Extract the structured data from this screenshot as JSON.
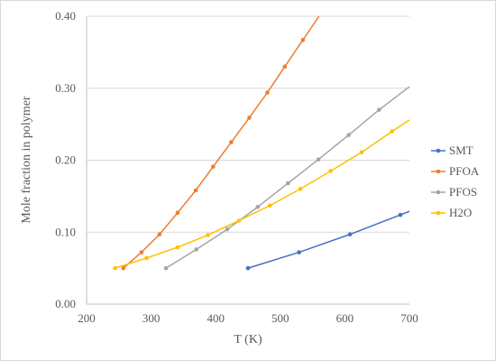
{
  "chart_data": {
    "type": "line",
    "title": "",
    "xlabel": "T (K)",
    "ylabel": "Mole fraction in polymer",
    "xlim": [
      200,
      700
    ],
    "ylim": [
      0.0,
      0.4
    ],
    "xticks": [
      "200",
      "300",
      "400",
      "500",
      "600",
      "700"
    ],
    "xtick_values": [
      200,
      300,
      400,
      500,
      600,
      700
    ],
    "yticks": [
      "0.00",
      "0.10",
      "0.20",
      "0.30",
      "0.40"
    ],
    "ytick_values": [
      0.0,
      0.1,
      0.2,
      0.3,
      0.4
    ],
    "grid": "horizontal",
    "legend_position": "right",
    "series": [
      {
        "name": "SMT",
        "color": "#4472C4",
        "x": [
          450,
          529,
          608,
          686,
          700
        ],
        "y": [
          0.05,
          0.072,
          0.097,
          0.124,
          0.129
        ],
        "markers": [
          true,
          true,
          true,
          true,
          false
        ]
      },
      {
        "name": "PFOA",
        "color": "#ED7D31",
        "x": [
          257,
          285,
          313,
          341,
          369,
          396,
          424,
          452,
          480,
          507,
          535,
          560
        ],
        "y": [
          0.05,
          0.072,
          0.097,
          0.127,
          0.158,
          0.191,
          0.225,
          0.259,
          0.294,
          0.33,
          0.367,
          0.4
        ],
        "markers": [
          true,
          true,
          true,
          true,
          true,
          true,
          true,
          true,
          true,
          true,
          true,
          false
        ]
      },
      {
        "name": "PFOS",
        "color": "#A5A5A5",
        "x": [
          323,
          370,
          418,
          465,
          512,
          559,
          606,
          653,
          700
        ],
        "y": [
          0.05,
          0.076,
          0.104,
          0.135,
          0.168,
          0.201,
          0.235,
          0.27,
          0.302
        ],
        "markers": [
          true,
          true,
          true,
          true,
          true,
          true,
          true,
          true,
          false
        ]
      },
      {
        "name": "H2O",
        "color": "#FFC000",
        "x": [
          244,
          293,
          341,
          388,
          436,
          484,
          531,
          578,
          626,
          673,
          700
        ],
        "y": [
          0.05,
          0.064,
          0.079,
          0.096,
          0.116,
          0.137,
          0.16,
          0.185,
          0.211,
          0.24,
          0.256
        ],
        "markers": [
          true,
          true,
          true,
          true,
          true,
          true,
          true,
          true,
          true,
          true,
          false
        ]
      }
    ]
  }
}
